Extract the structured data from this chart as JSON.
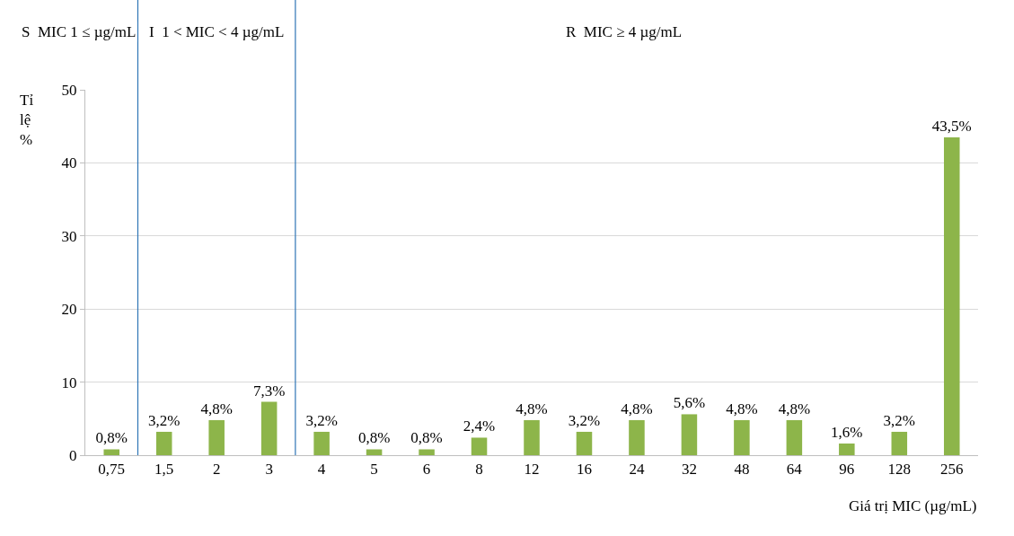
{
  "chart_data": {
    "type": "bar",
    "xlabel": "Giá trị MIC (µg/mL)",
    "ylabel": "Tỉ lệ %",
    "categories": [
      "0,75",
      "1,5",
      "2",
      "3",
      "4",
      "5",
      "6",
      "8",
      "12",
      "16",
      "24",
      "32",
      "48",
      "64",
      "96",
      "128",
      "256"
    ],
    "values": [
      0.8,
      3.2,
      4.8,
      7.3,
      3.2,
      0.8,
      0.8,
      2.4,
      4.8,
      3.2,
      4.8,
      5.6,
      4.8,
      4.8,
      1.6,
      3.2,
      43.5
    ],
    "value_labels": [
      "0,8%",
      "3,2%",
      "4,8%",
      "7,3%",
      "3,2%",
      "0,8%",
      "0,8%",
      "2,4%",
      "4,8%",
      "3,2%",
      "4,8%",
      "5,6%",
      "4,8%",
      "4,8%",
      "1,6%",
      "3,2%",
      "43,5%"
    ],
    "color": "#8db54a",
    "ylim": [
      0,
      50
    ],
    "yticks": [
      0,
      10,
      20,
      30,
      40,
      50
    ],
    "grid": "y",
    "annotations": [
      "S  MIC 1 ≤ µg/mL",
      "I  1 < MIC < 4 µg/mL",
      "R  MIC ≥ 4 µg/mL"
    ]
  }
}
